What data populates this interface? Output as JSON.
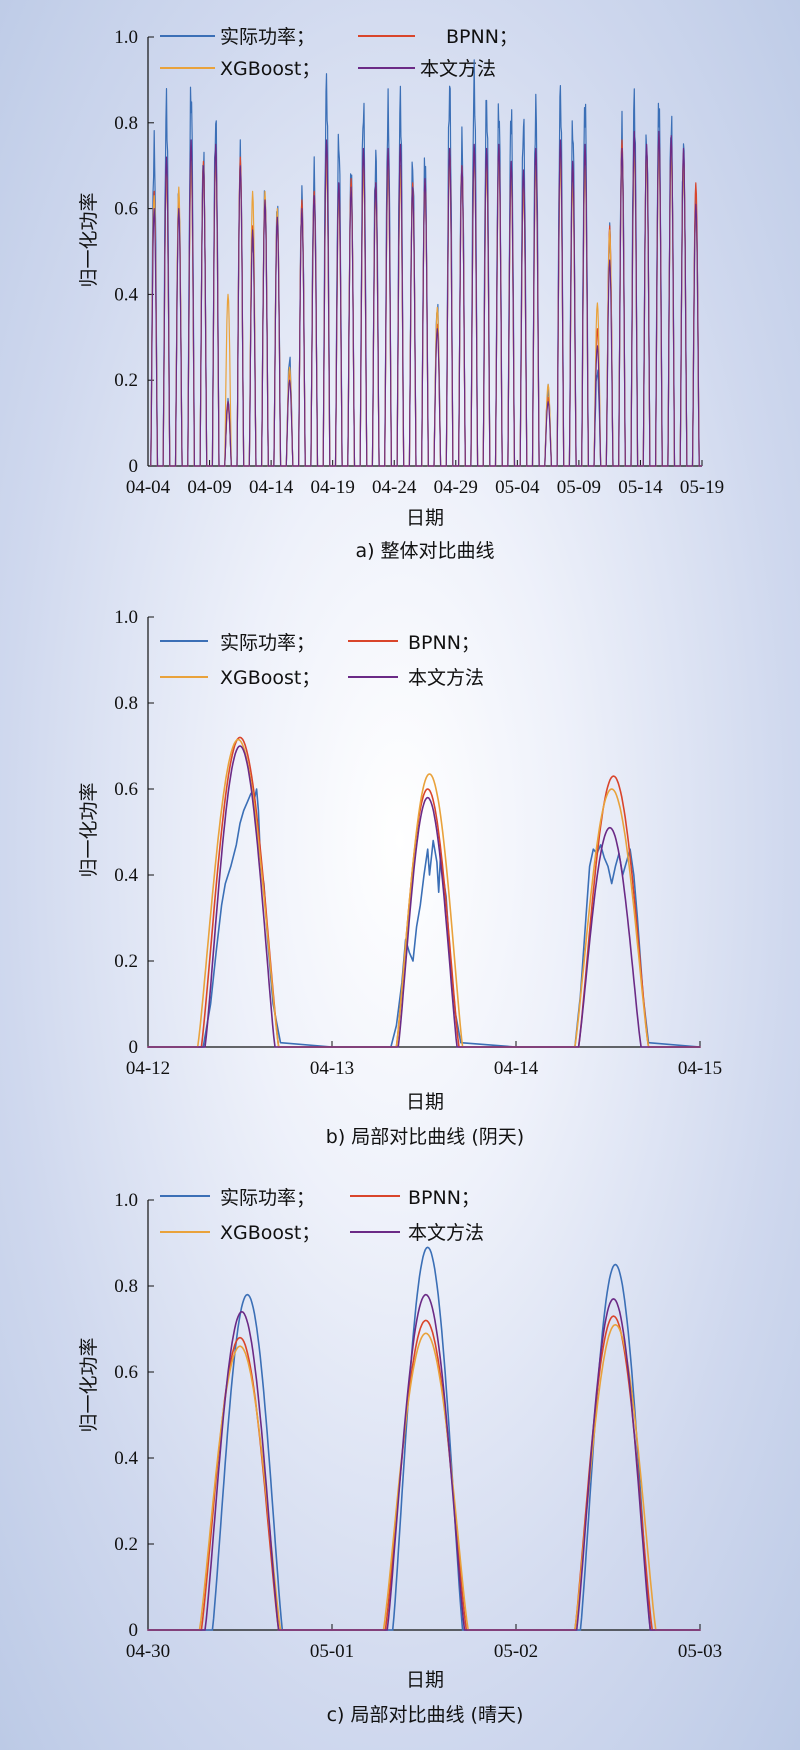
{
  "colors": {
    "actual": "#3b6fb6",
    "bpnn": "#d9452b",
    "xgboost": "#e9a23b",
    "proposed": "#6b2a86"
  },
  "chart_data": [
    {
      "type": "line",
      "caption": "a) 整体对比曲线",
      "xlabel": "日期",
      "ylabel": "归一化功率",
      "ylim": [
        0,
        1.0
      ],
      "yticks": [
        "0",
        "0.2",
        "0.4",
        "0.6",
        "0.8",
        "1.0"
      ],
      "xticks": [
        "04-04",
        "04-09",
        "04-14",
        "04-19",
        "04-24",
        "04-29",
        "05-04",
        "05-09",
        "05-14",
        "05-19"
      ],
      "legend": [
        "实际功率；",
        "BPNN；",
        "XGBoost；",
        "本文方法"
      ],
      "legend_placement": "top-left",
      "x_start": "04-04",
      "x_end": "05-19",
      "daily_peaks": {
        "actual": [
          0.74,
          0.84,
          0.63,
          0.87,
          0.72,
          0.8,
          0.15,
          0.72,
          0.55,
          0.63,
          0.6,
          0.25,
          0.63,
          0.68,
          0.89,
          0.76,
          0.68,
          0.83,
          0.72,
          0.83,
          0.85,
          0.7,
          0.71,
          0.37,
          0.88,
          0.75,
          0.9,
          0.85,
          0.83,
          0.82,
          0.8,
          0.83,
          0.18,
          0.87,
          0.79,
          0.84,
          0.22,
          0.55,
          0.78,
          0.85,
          0.76,
          0.84,
          0.8,
          0.74,
          0.62
        ],
        "bpnn": [
          0.64,
          0.7,
          0.62,
          0.72,
          0.71,
          0.73,
          0.14,
          0.72,
          0.56,
          0.62,
          0.58,
          0.22,
          0.62,
          0.64,
          0.75,
          0.65,
          0.67,
          0.72,
          0.66,
          0.72,
          0.7,
          0.66,
          0.66,
          0.33,
          0.74,
          0.7,
          0.74,
          0.72,
          0.74,
          0.7,
          0.67,
          0.72,
          0.16,
          0.74,
          0.7,
          0.72,
          0.32,
          0.56,
          0.76,
          0.76,
          0.74,
          0.77,
          0.76,
          0.73,
          0.66
        ],
        "xgboost": [
          0.63,
          0.7,
          0.65,
          0.71,
          0.7,
          0.73,
          0.4,
          0.7,
          0.64,
          0.64,
          0.6,
          0.23,
          0.6,
          0.62,
          0.72,
          0.63,
          0.65,
          0.7,
          0.64,
          0.7,
          0.7,
          0.65,
          0.66,
          0.37,
          0.73,
          0.7,
          0.73,
          0.71,
          0.73,
          0.68,
          0.66,
          0.7,
          0.19,
          0.72,
          0.66,
          0.7,
          0.38,
          0.55,
          0.72,
          0.74,
          0.73,
          0.74,
          0.73,
          0.72,
          0.6
        ],
        "proposed": [
          0.6,
          0.72,
          0.6,
          0.76,
          0.7,
          0.75,
          0.15,
          0.7,
          0.55,
          0.62,
          0.58,
          0.2,
          0.6,
          0.63,
          0.76,
          0.66,
          0.65,
          0.74,
          0.66,
          0.74,
          0.75,
          0.65,
          0.67,
          0.32,
          0.74,
          0.7,
          0.75,
          0.74,
          0.75,
          0.71,
          0.69,
          0.74,
          0.15,
          0.76,
          0.71,
          0.75,
          0.28,
          0.48,
          0.74,
          0.78,
          0.75,
          0.78,
          0.77,
          0.74,
          0.61
        ]
      }
    },
    {
      "type": "line",
      "caption": "b) 局部对比曲线 (阴天)",
      "xlabel": "日期",
      "ylabel": "归一化功率",
      "ylim": [
        0,
        1.0
      ],
      "yticks": [
        "0",
        "0.2",
        "0.4",
        "0.6",
        "0.8",
        "1.0"
      ],
      "xticks": [
        "04-12",
        "04-13",
        "04-14",
        "04-15"
      ],
      "legend": [
        "实际功率；",
        "BPNN；",
        "XGBoost；",
        "本文方法"
      ],
      "legend_placement": "top-left",
      "series": [
        {
          "key": "actual",
          "days": [
            {
              "start": 0.28,
              "end": 0.74,
              "pts": [
                [
                  0.3,
                  0.0
                ],
                [
                  0.34,
                  0.1
                ],
                [
                  0.37,
                  0.22
                ],
                [
                  0.4,
                  0.33
                ],
                [
                  0.42,
                  0.38
                ],
                [
                  0.45,
                  0.42
                ],
                [
                  0.48,
                  0.47
                ],
                [
                  0.5,
                  0.52
                ],
                [
                  0.52,
                  0.55
                ],
                [
                  0.54,
                  0.57
                ],
                [
                  0.56,
                  0.59
                ],
                [
                  0.58,
                  0.58
                ],
                [
                  0.59,
                  0.6
                ],
                [
                  0.6,
                  0.55
                ],
                [
                  0.61,
                  0.45
                ],
                [
                  0.62,
                  0.4
                ],
                [
                  0.63,
                  0.38
                ],
                [
                  0.65,
                  0.25
                ],
                [
                  0.68,
                  0.1
                ],
                [
                  0.72,
                  0.01
                ]
              ]
            },
            {
              "start": 0.3,
              "end": 0.72,
              "pts": [
                [
                  0.32,
                  0.0
                ],
                [
                  0.35,
                  0.05
                ],
                [
                  0.38,
                  0.15
                ],
                [
                  0.4,
                  0.25
                ],
                [
                  0.42,
                  0.22
                ],
                [
                  0.44,
                  0.2
                ],
                [
                  0.46,
                  0.28
                ],
                [
                  0.48,
                  0.33
                ],
                [
                  0.5,
                  0.4
                ],
                [
                  0.52,
                  0.46
                ],
                [
                  0.53,
                  0.4
                ],
                [
                  0.55,
                  0.48
                ],
                [
                  0.57,
                  0.43
                ],
                [
                  0.58,
                  0.36
                ],
                [
                  0.59,
                  0.45
                ],
                [
                  0.6,
                  0.4
                ],
                [
                  0.61,
                  0.38
                ],
                [
                  0.62,
                  0.35
                ],
                [
                  0.64,
                  0.22
                ],
                [
                  0.67,
                  0.08
                ],
                [
                  0.7,
                  0.01
                ]
              ]
            },
            {
              "start": 0.3,
              "end": 0.74,
              "pts": [
                [
                  0.32,
                  0.0
                ],
                [
                  0.35,
                  0.12
                ],
                [
                  0.38,
                  0.3
                ],
                [
                  0.4,
                  0.42
                ],
                [
                  0.42,
                  0.46
                ],
                [
                  0.44,
                  0.45
                ],
                [
                  0.46,
                  0.47
                ],
                [
                  0.48,
                  0.44
                ],
                [
                  0.5,
                  0.42
                ],
                [
                  0.52,
                  0.38
                ],
                [
                  0.54,
                  0.42
                ],
                [
                  0.56,
                  0.45
                ],
                [
                  0.58,
                  0.4
                ],
                [
                  0.6,
                  0.43
                ],
                [
                  0.62,
                  0.46
                ],
                [
                  0.64,
                  0.4
                ],
                [
                  0.66,
                  0.3
                ],
                [
                  0.69,
                  0.12
                ],
                [
                  0.72,
                  0.01
                ]
              ]
            }
          ]
        },
        {
          "key": "bpnn",
          "days": [
            {
              "center": 0.5,
              "width": 0.21,
              "peak": 0.72
            },
            {
              "center": 0.52,
              "width": 0.17,
              "peak": 0.6
            },
            {
              "center": 0.53,
              "width": 0.19,
              "peak": 0.63
            }
          ]
        },
        {
          "key": "xgboost",
          "days": [
            {
              "center": 0.49,
              "width": 0.22,
              "peak": 0.715
            },
            {
              "center": 0.53,
              "width": 0.18,
              "peak": 0.635
            },
            {
              "center": 0.52,
              "width": 0.2,
              "peak": 0.6
            }
          ]
        },
        {
          "key": "proposed",
          "days": [
            {
              "center": 0.5,
              "width": 0.19,
              "peak": 0.7
            },
            {
              "center": 0.52,
              "width": 0.16,
              "peak": 0.58
            },
            {
              "center": 0.51,
              "width": 0.17,
              "peak": 0.51
            }
          ]
        }
      ]
    },
    {
      "type": "line",
      "caption": "c) 局部对比曲线 (晴天)",
      "xlabel": "日期",
      "ylabel": "归一化功率",
      "ylim": [
        0,
        1.0
      ],
      "yticks": [
        "0",
        "0.2",
        "0.4",
        "0.6",
        "0.8",
        "1.0"
      ],
      "xticks": [
        "04-30",
        "05-01",
        "05-02",
        "05-03"
      ],
      "legend": [
        "实际功率；",
        "BPNN；",
        "XGBoost；",
        "本文方法"
      ],
      "legend_placement": "top-left",
      "series": [
        {
          "key": "actual",
          "days": [
            {
              "center": 0.54,
              "width": 0.19,
              "peak": 0.78
            },
            {
              "center": 0.52,
              "width": 0.19,
              "peak": 0.89
            },
            {
              "center": 0.54,
              "width": 0.19,
              "peak": 0.85
            }
          ]
        },
        {
          "key": "bpnn",
          "days": [
            {
              "center": 0.5,
              "width": 0.21,
              "peak": 0.68
            },
            {
              "center": 0.51,
              "width": 0.22,
              "peak": 0.72
            },
            {
              "center": 0.53,
              "width": 0.21,
              "peak": 0.73
            }
          ]
        },
        {
          "key": "xgboost",
          "days": [
            {
              "center": 0.5,
              "width": 0.22,
              "peak": 0.66
            },
            {
              "center": 0.51,
              "width": 0.23,
              "peak": 0.69
            },
            {
              "center": 0.54,
              "width": 0.22,
              "peak": 0.71
            }
          ]
        },
        {
          "key": "proposed",
          "days": [
            {
              "center": 0.51,
              "width": 0.2,
              "peak": 0.74
            },
            {
              "center": 0.51,
              "width": 0.21,
              "peak": 0.78
            },
            {
              "center": 0.53,
              "width": 0.2,
              "peak": 0.77
            }
          ]
        }
      ]
    }
  ]
}
